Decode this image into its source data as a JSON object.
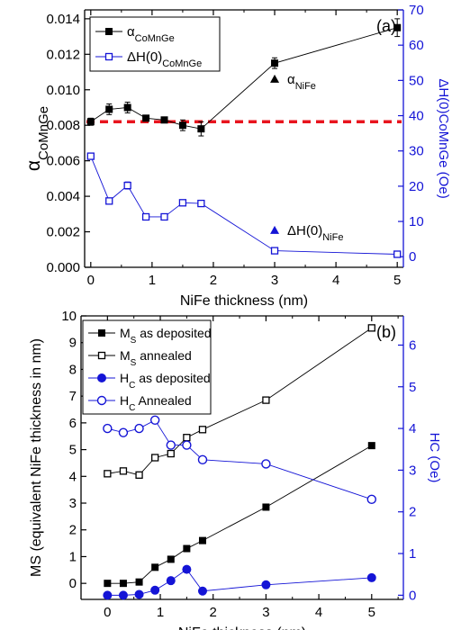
{
  "chart_data": [
    {
      "type": "line",
      "panel_label": "(a)",
      "xlabel": "NiFe thickness (nm)",
      "xlim": [
        -0.1,
        5.1
      ],
      "xticks": [
        "0",
        "1",
        "2",
        "3",
        "4",
        "5"
      ],
      "ylabel_left": {
        "main": "α",
        "sub": "CoMnGe"
      },
      "ylim_left": [
        0,
        0.0145
      ],
      "yticks_left": [
        "0.000",
        "0.002",
        "0.004",
        "0.006",
        "0.008",
        "0.010",
        "0.012",
        "0.014"
      ],
      "ylabel_right": "ΔH(0)CoMnGe (Oe)",
      "ylim_right": [
        -3,
        70
      ],
      "yticks_right": [
        "0",
        "10",
        "20",
        "30",
        "40",
        "50",
        "60",
        "70"
      ],
      "series": [
        {
          "name": "αCoMnGe",
          "legend": {
            "main": "α",
            "sub": "CoMnGe"
          },
          "axis": "left",
          "marker": "filled-square",
          "color": "#000000",
          "x": [
            0,
            0.3,
            0.6,
            0.9,
            1.2,
            1.5,
            1.8,
            3,
            5
          ],
          "y": [
            0.0082,
            0.0089,
            0.009,
            0.0084,
            0.0083,
            0.008,
            0.0078,
            0.0115,
            0.0135
          ],
          "err": [
            0.0002,
            0.0003,
            0.0003,
            0.0001,
            0.0001,
            0.0003,
            0.0004,
            0.0003,
            0.0005
          ]
        },
        {
          "name": "ΔH(0)CoMnGe",
          "legend": {
            "main": "ΔH(0)",
            "sub": "CoMnGe"
          },
          "axis": "right",
          "marker": "open-square",
          "color": "#1414d6",
          "x": [
            0,
            0.3,
            0.6,
            0.9,
            1.2,
            1.5,
            1.8,
            3,
            5
          ],
          "y": [
            28.5,
            15.8,
            20.2,
            11.3,
            11.3,
            15.3,
            15.1,
            1.7,
            0.7
          ],
          "err": [
            0.5,
            0.8,
            1.0,
            0.4,
            0.4,
            0.6,
            0.6,
            0.6,
            0.8
          ]
        }
      ],
      "reference_line": {
        "axis": "left",
        "y": 0.0082,
        "color": "#e8141e"
      },
      "annotations": [
        {
          "main": "α",
          "sub": "NiFe",
          "axis": "left",
          "x": 3,
          "y": 0.0106,
          "marker": "filled-triangle",
          "color": "#000000"
        },
        {
          "main": "ΔH(0)",
          "sub": "NiFe",
          "axis": "right",
          "x": 3,
          "y": 7.5,
          "marker": "filled-triangle",
          "color": "#1414d6"
        }
      ]
    },
    {
      "type": "line",
      "panel_label": "(b)",
      "xlabel": "NiFe thickness (nm)",
      "xlim": [
        -0.5,
        5.6
      ],
      "xticks": [
        "0",
        "1",
        "2",
        "3",
        "4",
        "5"
      ],
      "ylabel_left": "MS (equivalent NiFe thickness in nm)",
      "ylim_left": [
        -0.6,
        10
      ],
      "yticks_left": [
        "0",
        "1",
        "2",
        "3",
        "4",
        "5",
        "6",
        "7",
        "8",
        "9",
        "10"
      ],
      "ylabel_right": "HC (Oe)",
      "ylim_right": [
        -0.1,
        6.7
      ],
      "yticks_right": [
        "0",
        "1",
        "2",
        "3",
        "4",
        "5",
        "6"
      ],
      "series": [
        {
          "name": "MS as deposited",
          "legend": {
            "main": "M",
            "sub": "S",
            "rest": " as deposited"
          },
          "axis": "left",
          "marker": "filled-square",
          "color": "#000000",
          "x": [
            0,
            0.3,
            0.6,
            0.9,
            1.2,
            1.5,
            1.8,
            3,
            5
          ],
          "y": [
            0.0,
            0.0,
            0.05,
            0.6,
            0.9,
            1.3,
            1.6,
            2.85,
            5.15
          ]
        },
        {
          "name": "MS annealed",
          "legend": {
            "main": "M",
            "sub": "S",
            "rest": " annealed"
          },
          "axis": "left",
          "marker": "open-square",
          "color": "#000000",
          "x": [
            0,
            0.3,
            0.6,
            0.9,
            1.2,
            1.5,
            1.8,
            3,
            5
          ],
          "y": [
            4.1,
            4.2,
            4.05,
            4.7,
            4.85,
            5.45,
            5.75,
            6.85,
            9.55
          ]
        },
        {
          "name": "HC as deposited",
          "legend": {
            "main": "H",
            "sub": "C",
            "rest": " as deposited"
          },
          "axis": "right",
          "marker": "filled-circle",
          "color": "#1414d6",
          "x": [
            0,
            0.3,
            0.6,
            0.9,
            1.2,
            1.5,
            1.8,
            3,
            5
          ],
          "y": [
            0.0,
            0.0,
            0.02,
            0.12,
            0.35,
            0.62,
            0.1,
            0.25,
            0.42
          ]
        },
        {
          "name": "HC Annealed",
          "legend": {
            "main": "H",
            "sub": "C",
            "rest": " Annealed"
          },
          "axis": "right",
          "marker": "open-circle",
          "color": "#1414d6",
          "x": [
            0,
            0.3,
            0.6,
            0.9,
            1.2,
            1.5,
            1.8,
            3,
            5
          ],
          "y": [
            4.0,
            3.9,
            4.0,
            4.2,
            3.6,
            3.6,
            3.25,
            3.15,
            2.3
          ]
        }
      ]
    }
  ]
}
